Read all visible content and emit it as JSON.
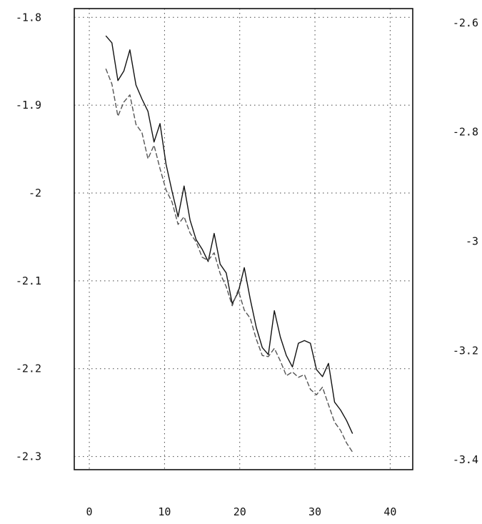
{
  "chart_data": {
    "type": "line",
    "title": "",
    "xlabel": "",
    "ylabel": "",
    "ylabel_right": "",
    "xlim": [
      -2,
      43
    ],
    "ylim": [
      -2.315,
      -1.79
    ],
    "y2lim": [
      -3.418,
      -2.574
    ],
    "x_ticks": [
      0,
      10,
      20,
      30,
      40
    ],
    "x_tick_labels": [
      "0",
      "10",
      "20",
      "30",
      "40"
    ],
    "y_ticks": [
      -1.8,
      -1.9,
      -2.0,
      -2.1,
      -2.2,
      -2.3
    ],
    "y_tick_labels": [
      "-1.8",
      "-1.9",
      "-2",
      "-2.1",
      "-2.2",
      "-2.3"
    ],
    "y2_ticks": [
      -2.6,
      -2.8,
      -3.0,
      -3.2,
      -3.4
    ],
    "y2_tick_labels": [
      "-2.6",
      "-2.8",
      "-3",
      "-3.2",
      "-3.4"
    ],
    "grid": true,
    "legend": "none",
    "series": [
      {
        "axis": "left",
        "style": "solid",
        "color": "#111111",
        "x": [
          2.2,
          3.0,
          3.8,
          4.6,
          5.4,
          6.2,
          7.0,
          7.8,
          8.6,
          9.4,
          10.2,
          11.0,
          11.8,
          12.6,
          13.4,
          14.2,
          15.0,
          15.8,
          16.6,
          17.4,
          18.2,
          19.0,
          19.8,
          20.6,
          21.4,
          22.2,
          23.0,
          23.8,
          24.6,
          25.4,
          26.2,
          27.0,
          27.8,
          28.6,
          29.4,
          30.2,
          31.0,
          31.8,
          32.6,
          33.4,
          34.2,
          35.0
        ],
        "y": [
          -1.821,
          -1.829,
          -1.872,
          -1.861,
          -1.837,
          -1.877,
          -1.893,
          -1.907,
          -1.942,
          -1.921,
          -1.967,
          -1.998,
          -2.027,
          -1.992,
          -2.031,
          -2.053,
          -2.064,
          -2.078,
          -2.046,
          -2.081,
          -2.091,
          -2.126,
          -2.113,
          -2.085,
          -2.121,
          -2.153,
          -2.176,
          -2.184,
          -2.134,
          -2.164,
          -2.185,
          -2.198,
          -2.171,
          -2.168,
          -2.171,
          -2.201,
          -2.209,
          -2.194,
          -2.238,
          -2.247,
          -2.259,
          -2.274
        ]
      },
      {
        "axis": "right",
        "style": "dashed",
        "color": "#555555",
        "x": [
          2.2,
          3.0,
          3.8,
          4.6,
          5.4,
          6.2,
          7.0,
          7.8,
          8.6,
          9.4,
          10.2,
          11.0,
          11.8,
          12.6,
          13.4,
          14.2,
          15.0,
          15.8,
          16.6,
          17.4,
          18.2,
          19.0,
          19.8,
          20.6,
          21.4,
          22.2,
          23.0,
          23.8,
          24.6,
          25.4,
          26.2,
          27.0,
          27.8,
          28.6,
          29.4,
          30.2,
          31.0,
          31.8,
          32.6,
          33.4,
          34.2,
          35.0
        ],
        "y": [
          -2.684,
          -2.712,
          -2.771,
          -2.745,
          -2.732,
          -2.786,
          -2.801,
          -2.849,
          -2.824,
          -2.867,
          -2.906,
          -2.928,
          -2.969,
          -2.955,
          -2.985,
          -3.001,
          -3.029,
          -3.035,
          -3.021,
          -3.059,
          -3.083,
          -3.118,
          -3.089,
          -3.126,
          -3.141,
          -3.179,
          -3.209,
          -3.211,
          -3.196,
          -3.219,
          -3.246,
          -3.239,
          -3.249,
          -3.244,
          -3.271,
          -3.281,
          -3.267,
          -3.299,
          -3.331,
          -3.346,
          -3.369,
          -3.386
        ]
      }
    ]
  }
}
